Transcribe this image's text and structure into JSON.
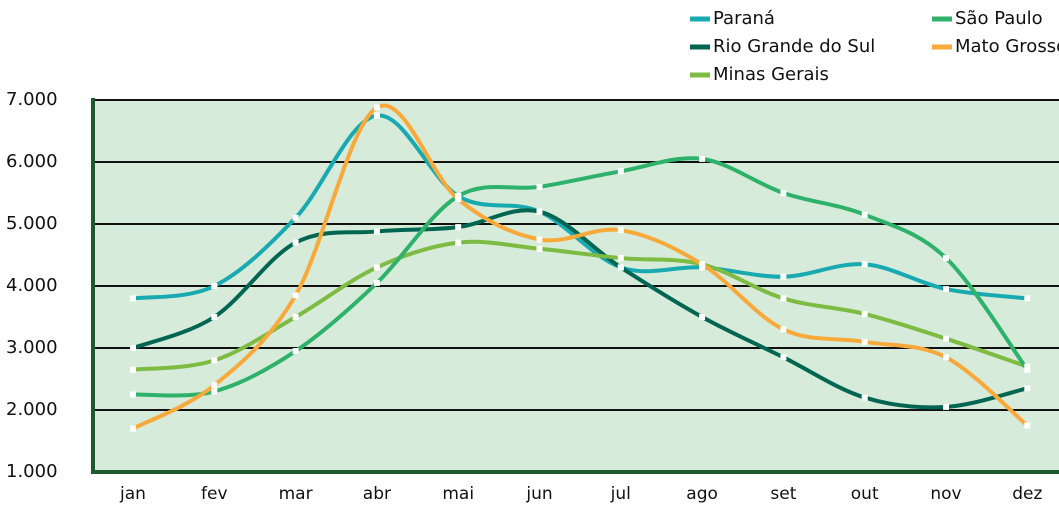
{
  "chart_data": {
    "type": "line",
    "categories": [
      "jan",
      "fev",
      "mar",
      "abr",
      "mai",
      "jun",
      "jul",
      "ago",
      "set",
      "out",
      "nov",
      "dez"
    ],
    "series": [
      {
        "name": "Paraná",
        "color": "#19a9b0",
        "values": [
          3800,
          4000,
          5100,
          6750,
          5450,
          5200,
          4300,
          4300,
          4150,
          4350,
          3950,
          3800
        ]
      },
      {
        "name": "Rio Grande do Sul",
        "color": "#006652",
        "values": [
          3000,
          3500,
          4700,
          4880,
          4950,
          5200,
          4300,
          3500,
          2850,
          2200,
          2050,
          2350
        ]
      },
      {
        "name": "Minas Gerais",
        "color": "#7dbb42",
        "values": [
          2650,
          2800,
          3500,
          4300,
          4700,
          4600,
          4450,
          4350,
          3800,
          3550,
          3150,
          2700
        ]
      },
      {
        "name": "São Paulo",
        "color": "#2eb26b",
        "values": [
          2250,
          2300,
          2950,
          4050,
          5450,
          5600,
          5850,
          6050,
          5500,
          5150,
          4450,
          2650
        ]
      },
      {
        "name": "Mato Grosso",
        "color": "#f8a93a",
        "values": [
          1700,
          2400,
          3850,
          6880,
          5400,
          4750,
          4900,
          4350,
          3300,
          3100,
          2850,
          1750
        ]
      }
    ],
    "ylim": [
      1000,
      7000
    ],
    "yticks": [
      {
        "value": 1000,
        "label": "1.000"
      },
      {
        "value": 2000,
        "label": "2.000"
      },
      {
        "value": 3000,
        "label": "3.000"
      },
      {
        "value": 4000,
        "label": "4.000"
      },
      {
        "value": 5000,
        "label": "5.000"
      },
      {
        "value": 6000,
        "label": "6.000"
      },
      {
        "value": 7000,
        "label": "7.000"
      }
    ],
    "grid": true
  }
}
